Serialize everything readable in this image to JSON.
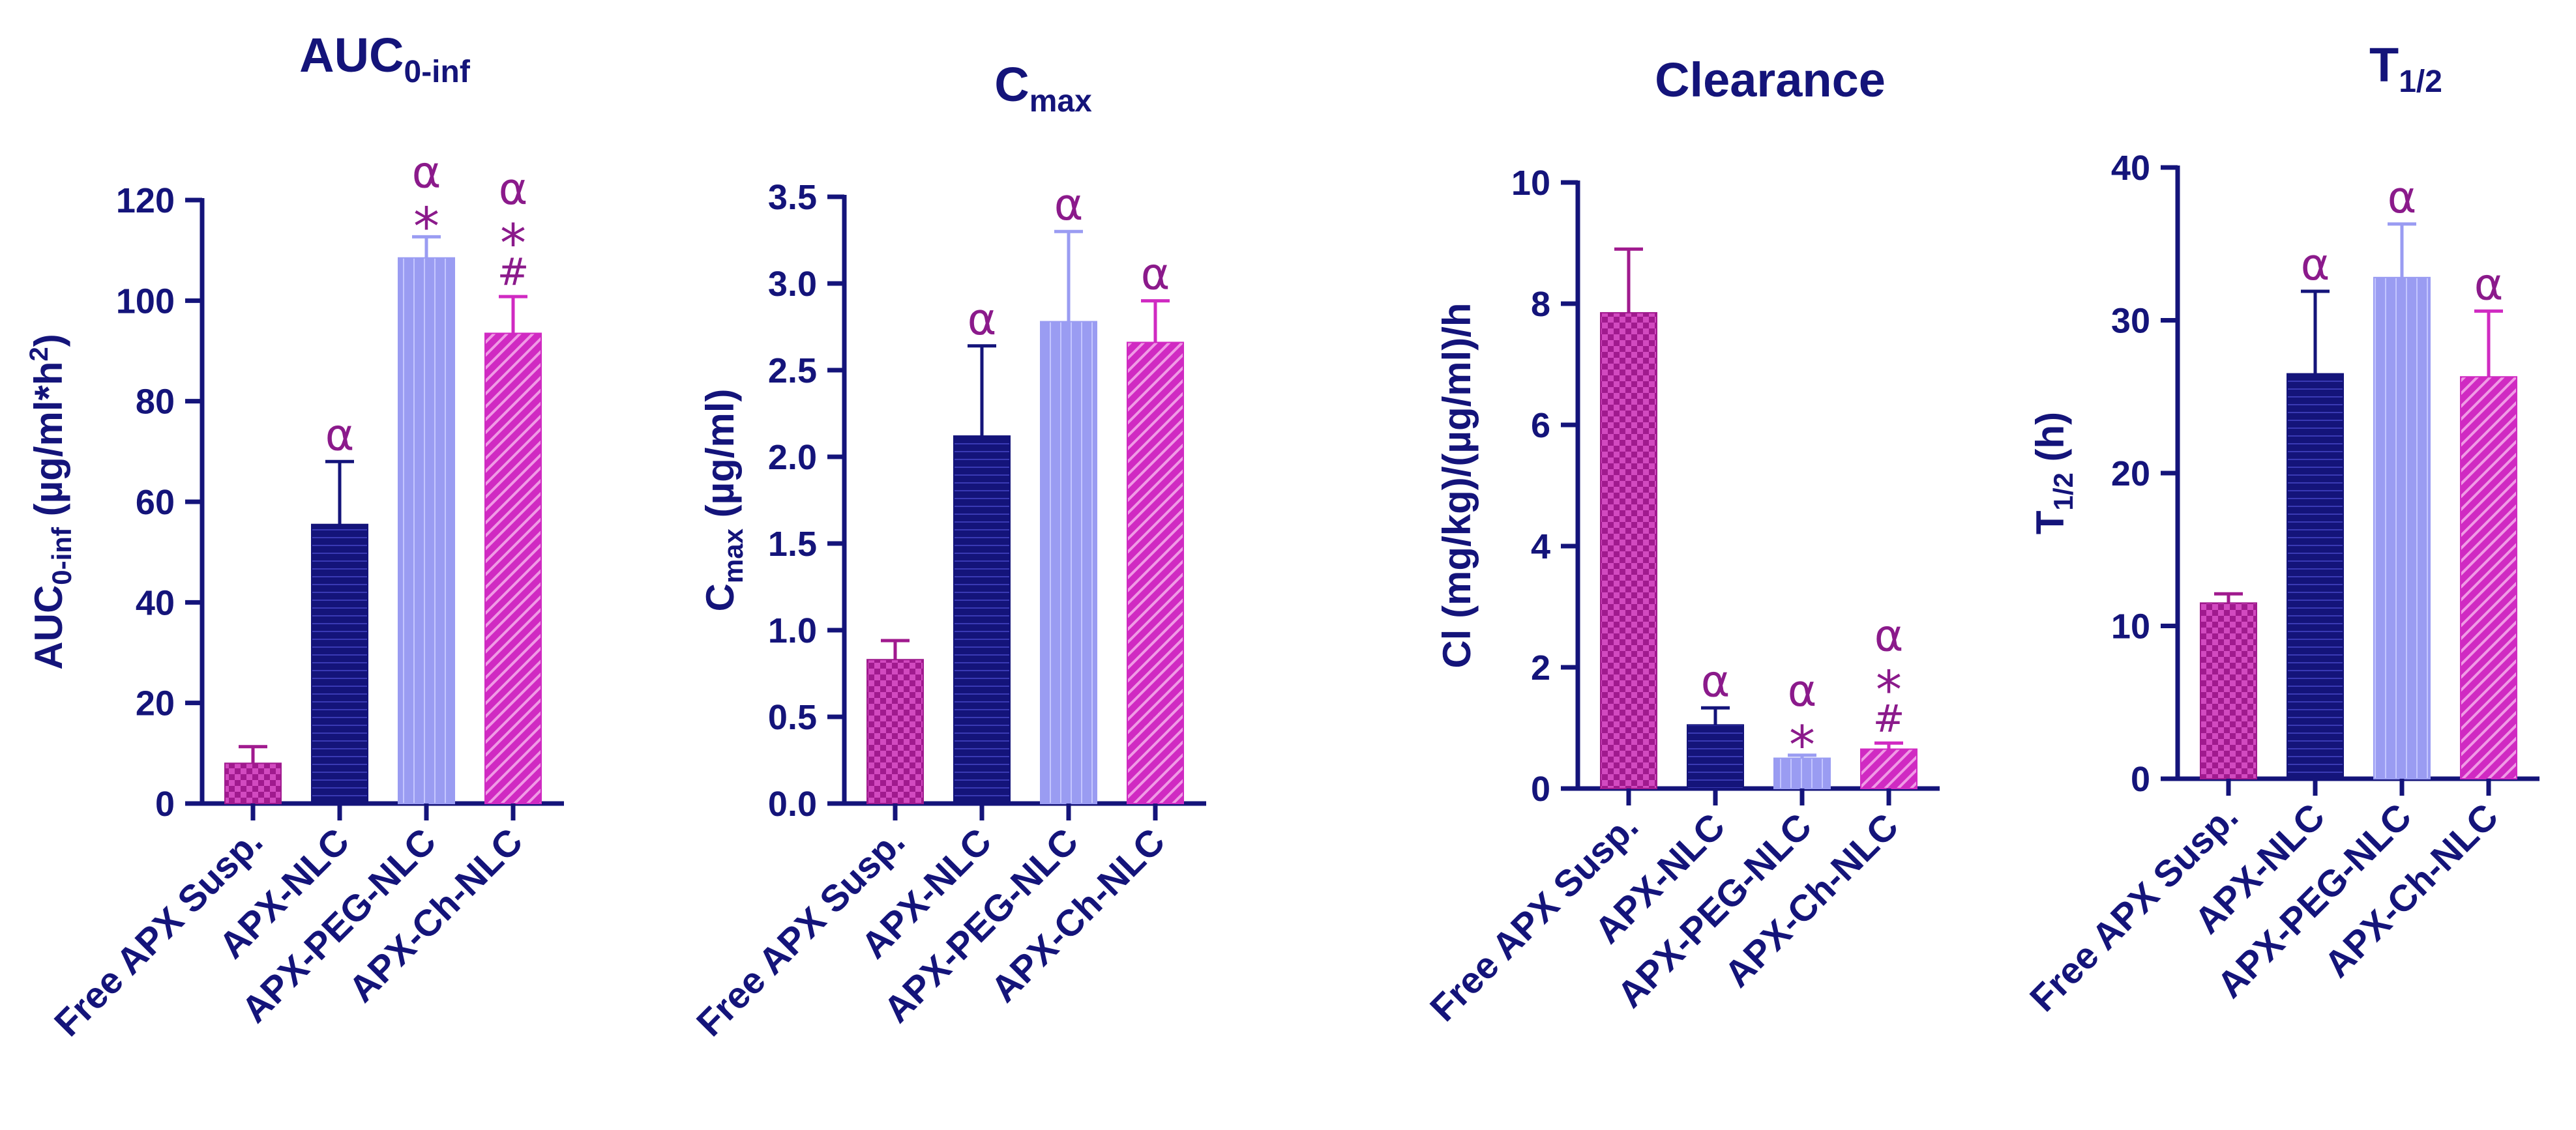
{
  "colors": {
    "axis": "#14147a",
    "annotation": "#8b1a8b",
    "free_apx": "#a01a8e",
    "apx_nlc": "#14147a",
    "apx_peg_nlc": "#9a9cf2",
    "apx_ch_nlc": "#d02ac2"
  },
  "categories": [
    "Free APX Susp.",
    "APX-NLC",
    "APX-PEG-NLC",
    "APX-Ch-NLC"
  ],
  "chart_data": [
    {
      "type": "bar",
      "title": "AUC",
      "title_sub": "0-inf",
      "ylabel_pre": "AUC",
      "ylabel_sub": "0-inf",
      "ylabel_post": " (µg/ml*h",
      "ylabel_sup": "2",
      "ylabel_end": ")",
      "ylim": [
        0,
        120
      ],
      "yticks": [
        0,
        20,
        40,
        60,
        80,
        100,
        120
      ],
      "categories": [
        "Free APX Susp.",
        "APX-NLC",
        "APX-PEG-NLC",
        "APX-Ch-NLC"
      ],
      "values": [
        8,
        55.5,
        108.5,
        93.5
      ],
      "errors": [
        3.3,
        12.5,
        4.2,
        7.3
      ],
      "annotations": [
        [],
        [
          "α"
        ],
        [
          "α",
          "*"
        ],
        [
          "α",
          "*",
          "#"
        ]
      ]
    },
    {
      "type": "bar",
      "title": "C",
      "title_sub": "max",
      "ylabel_pre": "C",
      "ylabel_sub": "max",
      "ylabel_post": " (µg/ml)",
      "ylabel_sup": "",
      "ylabel_end": "",
      "ylim": [
        0,
        3.5
      ],
      "yticks": [
        0.0,
        0.5,
        1.0,
        1.5,
        2.0,
        2.5,
        3.0,
        3.5
      ],
      "categories": [
        "Free APX Susp.",
        "APX-NLC",
        "APX-PEG-NLC",
        "APX-Ch-NLC"
      ],
      "values": [
        0.83,
        2.12,
        2.78,
        2.66
      ],
      "errors": [
        0.11,
        0.52,
        0.52,
        0.24
      ],
      "annotations": [
        [],
        [
          "α"
        ],
        [
          "α"
        ],
        [
          "α"
        ]
      ]
    },
    {
      "type": "bar",
      "title": "Clearance",
      "title_sub": "",
      "ylabel_pre": "Cl (mg/kg)/(µg/ml)/h",
      "ylabel_sub": "",
      "ylabel_post": "",
      "ylabel_sup": "",
      "ylabel_end": "",
      "ylim": [
        0,
        10
      ],
      "yticks": [
        0,
        2,
        4,
        6,
        8,
        10
      ],
      "categories": [
        "Free APX Susp.",
        "APX-NLC",
        "APX-PEG-NLC",
        "APX-Ch-NLC"
      ],
      "values": [
        7.85,
        1.05,
        0.5,
        0.65
      ],
      "errors": [
        1.05,
        0.28,
        0.05,
        0.1
      ],
      "annotations": [
        [],
        [
          "α"
        ],
        [
          "α",
          "*"
        ],
        [
          "α",
          "*",
          "#"
        ]
      ]
    },
    {
      "type": "bar",
      "title": "T",
      "title_sub": "1/2",
      "ylabel_pre": "T",
      "ylabel_sub": "1/2",
      "ylabel_post": " (h)",
      "ylabel_sup": "",
      "ylabel_end": "",
      "ylim": [
        0,
        40
      ],
      "yticks": [
        0,
        10,
        20,
        30,
        40
      ],
      "categories": [
        "Free APX Susp.",
        "APX-NLC",
        "APX-PEG-NLC",
        "APX-Ch-NLC"
      ],
      "values": [
        11.5,
        26.5,
        32.8,
        26.3
      ],
      "errors": [
        0.6,
        5.4,
        3.5,
        4.3
      ],
      "annotations": [
        [],
        [
          "α"
        ],
        [
          "α"
        ],
        [
          "α"
        ]
      ]
    }
  ]
}
